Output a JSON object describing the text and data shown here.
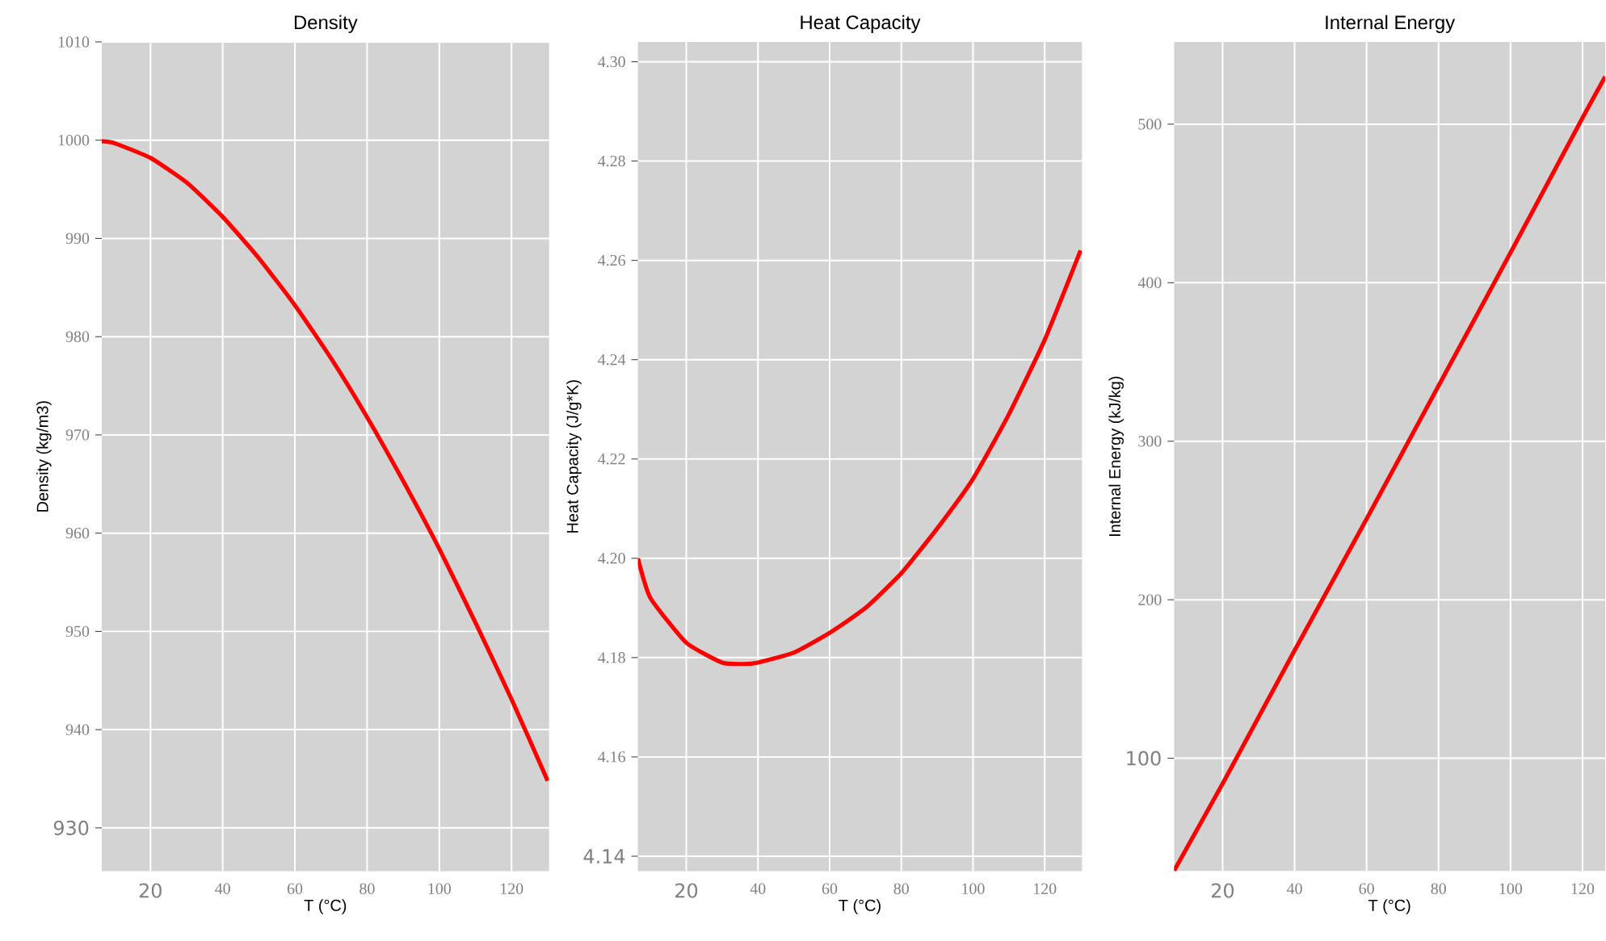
{
  "chart_data": [
    {
      "type": "line",
      "title": "Density",
      "xlabel": "T (°C)",
      "ylabel": "Density (kg/m3)",
      "grid": true,
      "x": [
        6.5,
        10,
        20,
        30,
        40,
        50,
        60,
        70,
        80,
        90,
        100,
        110,
        120,
        130
      ],
      "series": [
        {
          "color": "#ff0000",
          "values": [
            999.9,
            999.7,
            998.2,
            995.7,
            992.2,
            988.0,
            983.2,
            977.8,
            971.8,
            965.3,
            958.4,
            950.9,
            943.1,
            934.8
          ]
        }
      ],
      "xlim": [
        6.5,
        130.4
      ],
      "ylim": [
        925.6,
        1010
      ],
      "xticks": [
        20,
        40,
        60,
        80,
        100,
        120
      ],
      "yticks": [
        930,
        940,
        950,
        960,
        970,
        980,
        990,
        1000,
        1010
      ]
    },
    {
      "type": "line",
      "title": "Heat Capacity",
      "xlabel": "T (°C)",
      "ylabel": "Heat Capacity (J/g*K)",
      "grid": true,
      "x": [
        6.5,
        10,
        20,
        30,
        36,
        40,
        50,
        60,
        70,
        80,
        90,
        100,
        110,
        120,
        130
      ],
      "series": [
        {
          "color": "#ff0000",
          "values": [
            4.2,
            4.192,
            4.183,
            4.179,
            4.1787,
            4.179,
            4.181,
            4.185,
            4.19,
            4.197,
            4.206,
            4.216,
            4.229,
            4.244,
            4.262
          ]
        }
      ],
      "xlim": [
        6.5,
        130.4
      ],
      "ylim": [
        4.137,
        4.304
      ],
      "xticks": [
        20,
        40,
        60,
        80,
        100,
        120
      ],
      "yticks": [
        {
          "value": 4.14,
          "label": "4.14"
        },
        {
          "value": 4.16,
          "label": "4.16"
        },
        {
          "value": 4.18,
          "label": "4.18"
        },
        {
          "value": 4.2,
          "label": "4.20"
        },
        {
          "value": 4.22,
          "label": "4.22"
        },
        {
          "value": 4.24,
          "label": "4.24"
        },
        {
          "value": 4.26,
          "label": "4.26"
        },
        {
          "value": 4.28,
          "label": "4.28"
        },
        {
          "value": 4.3,
          "label": "4.30"
        }
      ]
    },
    {
      "type": "line",
      "title": "Internal Energy",
      "xlabel": "T (°C)",
      "ylabel": "Internal Energy (kJ/kg)",
      "grid": true,
      "x": [
        6.5,
        20,
        40,
        60,
        80,
        100,
        120,
        126.3
      ],
      "series": [
        {
          "color": "#ff0000",
          "values": [
            29,
            84,
            168,
            251,
            335,
            419,
            504,
            530
          ]
        }
      ],
      "xlim": [
        6.5,
        126.3
      ],
      "ylim": [
        28.8,
        551.9
      ],
      "xticks": [
        20,
        40,
        60,
        80,
        100,
        120
      ],
      "yticks": [
        100,
        200,
        300,
        400,
        500
      ]
    }
  ]
}
